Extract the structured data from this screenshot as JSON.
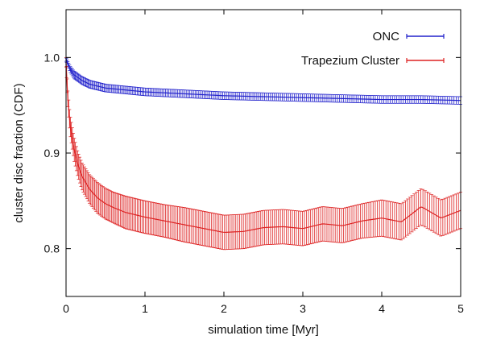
{
  "chart_data": {
    "type": "line",
    "title": "",
    "xlabel": "simulation time [Myr]",
    "ylabel": "cluster disc fraction (CDF)",
    "xlim": [
      0,
      5
    ],
    "ylim": [
      0.75,
      1.05
    ],
    "x_ticks": [
      0,
      1,
      2,
      3,
      4,
      5
    ],
    "x_tick_labels": [
      "0",
      "1",
      "2",
      "3",
      "4",
      "5"
    ],
    "y_ticks": [
      0.8,
      0.9,
      1.0
    ],
    "y_tick_labels": [
      "0.8",
      "0.9",
      "1.0"
    ],
    "grid": false,
    "legend_position": "top-right",
    "error_bars": true,
    "series": [
      {
        "name": "ONC",
        "color": "#2222cc",
        "x": [
          0.0,
          0.05,
          0.1,
          0.2,
          0.3,
          0.5,
          0.75,
          1.0,
          1.5,
          2.0,
          2.5,
          3.0,
          3.5,
          4.0,
          4.5,
          5.0
        ],
        "values": [
          0.998,
          0.988,
          0.982,
          0.976,
          0.972,
          0.968,
          0.966,
          0.964,
          0.962,
          0.96,
          0.959,
          0.958,
          0.957,
          0.956,
          0.956,
          0.955
        ],
        "error": [
          0.002,
          0.003,
          0.004,
          0.004,
          0.004,
          0.004,
          0.004,
          0.004,
          0.004,
          0.004,
          0.004,
          0.004,
          0.004,
          0.004,
          0.004,
          0.004
        ]
      },
      {
        "name": "Trapezium Cluster",
        "color": "#dd2222",
        "x": [
          0.0,
          0.02,
          0.05,
          0.1,
          0.15,
          0.2,
          0.3,
          0.4,
          0.5,
          0.6,
          0.75,
          1.0,
          1.25,
          1.5,
          1.75,
          2.0,
          2.25,
          2.5,
          2.75,
          3.0,
          3.25,
          3.5,
          3.75,
          4.0,
          4.25,
          4.5,
          4.75,
          5.0
        ],
        "values": [
          0.995,
          0.96,
          0.93,
          0.905,
          0.888,
          0.876,
          0.862,
          0.853,
          0.847,
          0.843,
          0.838,
          0.833,
          0.829,
          0.825,
          0.821,
          0.817,
          0.818,
          0.822,
          0.823,
          0.821,
          0.826,
          0.824,
          0.829,
          0.832,
          0.828,
          0.844,
          0.832,
          0.84
        ],
        "error": [
          0.005,
          0.008,
          0.01,
          0.012,
          0.013,
          0.014,
          0.015,
          0.016,
          0.016,
          0.016,
          0.017,
          0.017,
          0.017,
          0.018,
          0.018,
          0.018,
          0.018,
          0.018,
          0.018,
          0.018,
          0.018,
          0.018,
          0.018,
          0.019,
          0.019,
          0.019,
          0.019,
          0.019
        ]
      }
    ]
  }
}
